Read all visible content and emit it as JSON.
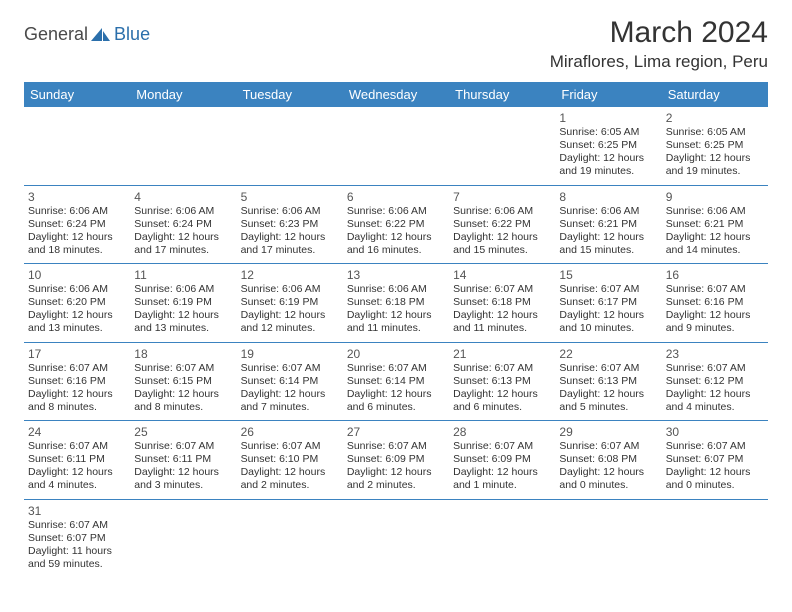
{
  "logo": {
    "general": "General",
    "blue": "Blue"
  },
  "month_title": "March 2024",
  "location": "Miraflores, Lima region, Peru",
  "colors": {
    "header_bg": "#3b83c0",
    "header_text": "#ffffff",
    "border": "#3b83c0",
    "text": "#333333",
    "daynum": "#555555",
    "logo_gray": "#4a4a4a",
    "logo_blue": "#2b6fab",
    "background": "#ffffff"
  },
  "weekdays": [
    "Sunday",
    "Monday",
    "Tuesday",
    "Wednesday",
    "Thursday",
    "Friday",
    "Saturday"
  ],
  "weeks": [
    [
      null,
      null,
      null,
      null,
      null,
      {
        "n": "1",
        "sr": "Sunrise: 6:05 AM",
        "ss": "Sunset: 6:25 PM",
        "d1": "Daylight: 12 hours",
        "d2": "and 19 minutes."
      },
      {
        "n": "2",
        "sr": "Sunrise: 6:05 AM",
        "ss": "Sunset: 6:25 PM",
        "d1": "Daylight: 12 hours",
        "d2": "and 19 minutes."
      }
    ],
    [
      {
        "n": "3",
        "sr": "Sunrise: 6:06 AM",
        "ss": "Sunset: 6:24 PM",
        "d1": "Daylight: 12 hours",
        "d2": "and 18 minutes."
      },
      {
        "n": "4",
        "sr": "Sunrise: 6:06 AM",
        "ss": "Sunset: 6:24 PM",
        "d1": "Daylight: 12 hours",
        "d2": "and 17 minutes."
      },
      {
        "n": "5",
        "sr": "Sunrise: 6:06 AM",
        "ss": "Sunset: 6:23 PM",
        "d1": "Daylight: 12 hours",
        "d2": "and 17 minutes."
      },
      {
        "n": "6",
        "sr": "Sunrise: 6:06 AM",
        "ss": "Sunset: 6:22 PM",
        "d1": "Daylight: 12 hours",
        "d2": "and 16 minutes."
      },
      {
        "n": "7",
        "sr": "Sunrise: 6:06 AM",
        "ss": "Sunset: 6:22 PM",
        "d1": "Daylight: 12 hours",
        "d2": "and 15 minutes."
      },
      {
        "n": "8",
        "sr": "Sunrise: 6:06 AM",
        "ss": "Sunset: 6:21 PM",
        "d1": "Daylight: 12 hours",
        "d2": "and 15 minutes."
      },
      {
        "n": "9",
        "sr": "Sunrise: 6:06 AM",
        "ss": "Sunset: 6:21 PM",
        "d1": "Daylight: 12 hours",
        "d2": "and 14 minutes."
      }
    ],
    [
      {
        "n": "10",
        "sr": "Sunrise: 6:06 AM",
        "ss": "Sunset: 6:20 PM",
        "d1": "Daylight: 12 hours",
        "d2": "and 13 minutes."
      },
      {
        "n": "11",
        "sr": "Sunrise: 6:06 AM",
        "ss": "Sunset: 6:19 PM",
        "d1": "Daylight: 12 hours",
        "d2": "and 13 minutes."
      },
      {
        "n": "12",
        "sr": "Sunrise: 6:06 AM",
        "ss": "Sunset: 6:19 PM",
        "d1": "Daylight: 12 hours",
        "d2": "and 12 minutes."
      },
      {
        "n": "13",
        "sr": "Sunrise: 6:06 AM",
        "ss": "Sunset: 6:18 PM",
        "d1": "Daylight: 12 hours",
        "d2": "and 11 minutes."
      },
      {
        "n": "14",
        "sr": "Sunrise: 6:07 AM",
        "ss": "Sunset: 6:18 PM",
        "d1": "Daylight: 12 hours",
        "d2": "and 11 minutes."
      },
      {
        "n": "15",
        "sr": "Sunrise: 6:07 AM",
        "ss": "Sunset: 6:17 PM",
        "d1": "Daylight: 12 hours",
        "d2": "and 10 minutes."
      },
      {
        "n": "16",
        "sr": "Sunrise: 6:07 AM",
        "ss": "Sunset: 6:16 PM",
        "d1": "Daylight: 12 hours",
        "d2": "and 9 minutes."
      }
    ],
    [
      {
        "n": "17",
        "sr": "Sunrise: 6:07 AM",
        "ss": "Sunset: 6:16 PM",
        "d1": "Daylight: 12 hours",
        "d2": "and 8 minutes."
      },
      {
        "n": "18",
        "sr": "Sunrise: 6:07 AM",
        "ss": "Sunset: 6:15 PM",
        "d1": "Daylight: 12 hours",
        "d2": "and 8 minutes."
      },
      {
        "n": "19",
        "sr": "Sunrise: 6:07 AM",
        "ss": "Sunset: 6:14 PM",
        "d1": "Daylight: 12 hours",
        "d2": "and 7 minutes."
      },
      {
        "n": "20",
        "sr": "Sunrise: 6:07 AM",
        "ss": "Sunset: 6:14 PM",
        "d1": "Daylight: 12 hours",
        "d2": "and 6 minutes."
      },
      {
        "n": "21",
        "sr": "Sunrise: 6:07 AM",
        "ss": "Sunset: 6:13 PM",
        "d1": "Daylight: 12 hours",
        "d2": "and 6 minutes."
      },
      {
        "n": "22",
        "sr": "Sunrise: 6:07 AM",
        "ss": "Sunset: 6:13 PM",
        "d1": "Daylight: 12 hours",
        "d2": "and 5 minutes."
      },
      {
        "n": "23",
        "sr": "Sunrise: 6:07 AM",
        "ss": "Sunset: 6:12 PM",
        "d1": "Daylight: 12 hours",
        "d2": "and 4 minutes."
      }
    ],
    [
      {
        "n": "24",
        "sr": "Sunrise: 6:07 AM",
        "ss": "Sunset: 6:11 PM",
        "d1": "Daylight: 12 hours",
        "d2": "and 4 minutes."
      },
      {
        "n": "25",
        "sr": "Sunrise: 6:07 AM",
        "ss": "Sunset: 6:11 PM",
        "d1": "Daylight: 12 hours",
        "d2": "and 3 minutes."
      },
      {
        "n": "26",
        "sr": "Sunrise: 6:07 AM",
        "ss": "Sunset: 6:10 PM",
        "d1": "Daylight: 12 hours",
        "d2": "and 2 minutes."
      },
      {
        "n": "27",
        "sr": "Sunrise: 6:07 AM",
        "ss": "Sunset: 6:09 PM",
        "d1": "Daylight: 12 hours",
        "d2": "and 2 minutes."
      },
      {
        "n": "28",
        "sr": "Sunrise: 6:07 AM",
        "ss": "Sunset: 6:09 PM",
        "d1": "Daylight: 12 hours",
        "d2": "and 1 minute."
      },
      {
        "n": "29",
        "sr": "Sunrise: 6:07 AM",
        "ss": "Sunset: 6:08 PM",
        "d1": "Daylight: 12 hours",
        "d2": "and 0 minutes."
      },
      {
        "n": "30",
        "sr": "Sunrise: 6:07 AM",
        "ss": "Sunset: 6:07 PM",
        "d1": "Daylight: 12 hours",
        "d2": "and 0 minutes."
      }
    ],
    [
      {
        "n": "31",
        "sr": "Sunrise: 6:07 AM",
        "ss": "Sunset: 6:07 PM",
        "d1": "Daylight: 11 hours",
        "d2": "and 59 minutes."
      },
      null,
      null,
      null,
      null,
      null,
      null
    ]
  ]
}
